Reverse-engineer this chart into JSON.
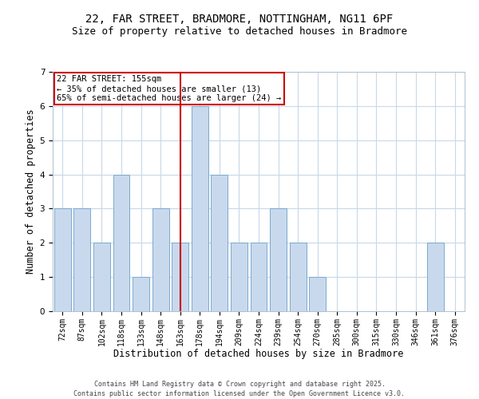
{
  "title_line1": "22, FAR STREET, BRADMORE, NOTTINGHAM, NG11 6PF",
  "title_line2": "Size of property relative to detached houses in Bradmore",
  "xlabel": "Distribution of detached houses by size in Bradmore",
  "ylabel": "Number of detached properties",
  "categories": [
    "72sqm",
    "87sqm",
    "102sqm",
    "118sqm",
    "133sqm",
    "148sqm",
    "163sqm",
    "178sqm",
    "194sqm",
    "209sqm",
    "224sqm",
    "239sqm",
    "254sqm",
    "270sqm",
    "285sqm",
    "300sqm",
    "315sqm",
    "330sqm",
    "346sqm",
    "361sqm",
    "376sqm"
  ],
  "values": [
    3,
    3,
    2,
    4,
    1,
    3,
    2,
    6,
    4,
    2,
    2,
    3,
    2,
    1,
    0,
    0,
    0,
    0,
    0,
    2,
    0
  ],
  "bar_color": "#c9d9ed",
  "bar_edge_color": "#7aaacf",
  "highlight_bar_index": 6,
  "highlight_line_color": "#cc0000",
  "ylim": [
    0,
    7
  ],
  "yticks": [
    0,
    1,
    2,
    3,
    4,
    5,
    6,
    7
  ],
  "annotation_text": "22 FAR STREET: 155sqm\n← 35% of detached houses are smaller (13)\n65% of semi-detached houses are larger (24) →",
  "annotation_box_color": "#ffffff",
  "annotation_box_edge": "#cc0000",
  "footer_line1": "Contains HM Land Registry data © Crown copyright and database right 2025.",
  "footer_line2": "Contains public sector information licensed under the Open Government Licence v3.0.",
  "background_color": "#ffffff",
  "grid_color": "#c8d8e8",
  "title_fontsize": 10,
  "subtitle_fontsize": 9,
  "tick_fontsize": 7,
  "ylabel_fontsize": 8.5,
  "xlabel_fontsize": 8.5,
  "footer_fontsize": 6,
  "annotation_fontsize": 7.5
}
